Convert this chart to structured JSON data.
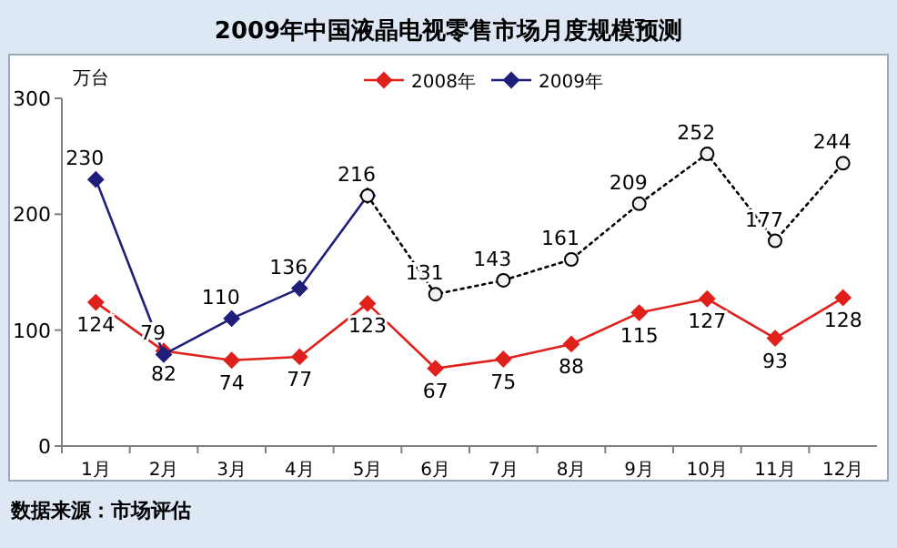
{
  "chart_data": {
    "type": "line",
    "title": "2009年中国液晶电视零售市场月度规模预测",
    "ylabel": "万台",
    "categories": [
      "1月",
      "2月",
      "3月",
      "4月",
      "5月",
      "6月",
      "7月",
      "8月",
      "9月",
      "10月",
      "11月",
      "12月"
    ],
    "series": [
      {
        "name": "2008年",
        "color": "#e0201b",
        "marker": "diamond",
        "line_style": "solid",
        "values": [
          124,
          82,
          74,
          77,
          123,
          67,
          75,
          88,
          115,
          127,
          93,
          128
        ],
        "value_labels": [
          "124",
          "82",
          "74",
          "77",
          "123",
          "67",
          "75",
          "88",
          "115",
          "127",
          "93",
          "128"
        ]
      },
      {
        "name": "2009年",
        "color": "#1f1f7a",
        "marker": "diamond",
        "line_style": "solid",
        "values": [
          230,
          79,
          110,
          136,
          216,
          null,
          null,
          null,
          null,
          null,
          null,
          null
        ],
        "value_labels": [
          "230",
          "79",
          "110",
          "136",
          "216",
          null,
          null,
          null,
          null,
          null,
          null,
          null
        ]
      },
      {
        "color": "#000000",
        "marker": "circle",
        "line_style": "dotted",
        "values": [
          null,
          null,
          null,
          null,
          216,
          131,
          143,
          161,
          209,
          252,
          177,
          244
        ],
        "value_labels": [
          null,
          null,
          null,
          null,
          null,
          "131",
          "143",
          "161",
          "209",
          "252",
          "177",
          "244"
        ]
      }
    ],
    "ylim": [
      0,
      300
    ],
    "yticks": [
      0,
      100,
      200,
      300
    ],
    "grid": false,
    "legend": "top",
    "annotations": [
      "数据来源：市场评估"
    ]
  }
}
